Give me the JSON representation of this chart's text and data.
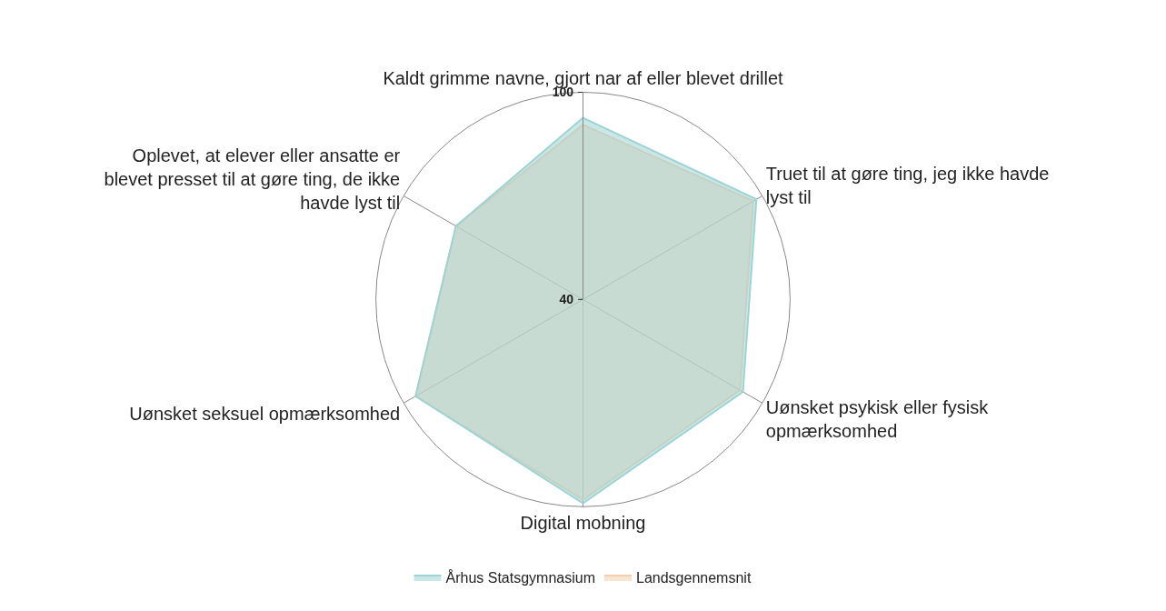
{
  "chart_data": {
    "type": "radar",
    "categories": [
      "Kaldt grimme navne, gjort nar af eller blevet drillet",
      "Truet til at gøre ting, jeg ikke havde lyst til",
      "Uønsket psykisk eller fysisk opmærksomhed",
      "Digital mobning",
      "Uønsket seksuel opmærksomhed",
      "Oplevet, at elever eller ansatte er blevet presset til at gøre ting, de ikke havde lyst til"
    ],
    "series": [
      {
        "name": "Århus Statsgymnasium",
        "color": "#9ed3d3",
        "values": [
          92.6,
          98,
          93.5,
          99,
          96,
          82.5
        ]
      },
      {
        "name": "Landsgennemsnit",
        "color": "#f3cfae",
        "values": [
          90.6,
          97,
          92.5,
          98,
          96,
          82.5
        ]
      }
    ],
    "ylim": [
      40,
      100
    ],
    "yticks": [
      40,
      100
    ],
    "legend": "bottom"
  }
}
